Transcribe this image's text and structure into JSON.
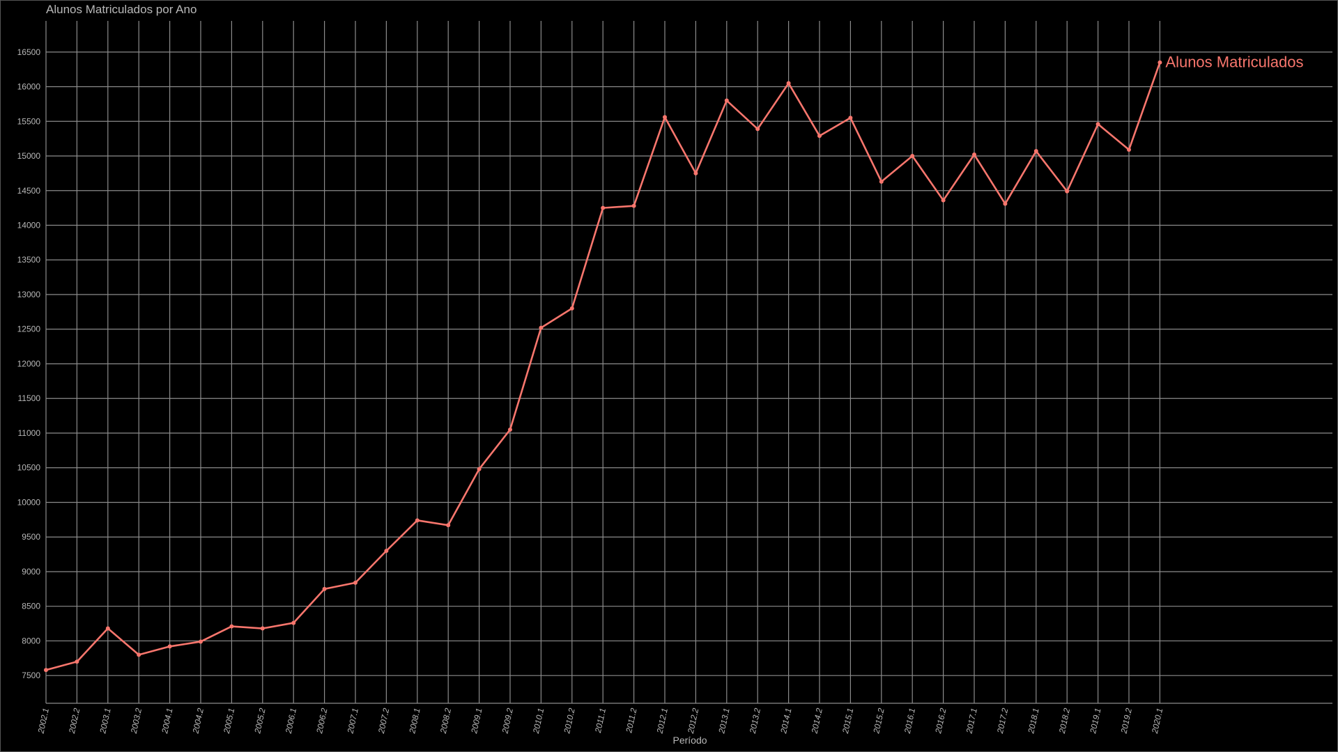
{
  "chart_data": {
    "type": "line",
    "title": "Alunos Matriculados por Ano",
    "xlabel": "Período",
    "ylabel": "",
    "ylim": [
      7100,
      16950
    ],
    "yticks": [
      7500,
      8000,
      8500,
      9000,
      9500,
      10000,
      10500,
      11000,
      11500,
      12000,
      12500,
      13000,
      13500,
      14000,
      14500,
      15000,
      15500,
      16000,
      16500
    ],
    "grid": true,
    "categories": [
      "2002.1",
      "2002.2",
      "2003.1",
      "2003.2",
      "2004.1",
      "2004.2",
      "2005.1",
      "2005.2",
      "2006.1",
      "2006.2",
      "2007.1",
      "2007.2",
      "2008.1",
      "2008.2",
      "2009.1",
      "2009.2",
      "2010.1",
      "2010.2",
      "2011.1",
      "2011.2",
      "2012.1",
      "2012.2",
      "2013.1",
      "2013.2",
      "2014.1",
      "2014.2",
      "2015.1",
      "2015.2",
      "2016.1",
      "2016.2",
      "2017.1",
      "2017.2",
      "2018.1",
      "2018.2",
      "2019.1",
      "2019.2",
      "2020.1"
    ],
    "series": [
      {
        "name": "Alunos Matriculados",
        "color": "#f8766d",
        "values": [
          7580,
          7700,
          8180,
          7800,
          7920,
          7990,
          8210,
          8180,
          8260,
          8750,
          8840,
          9300,
          9740,
          9670,
          10480,
          11050,
          12520,
          12800,
          14250,
          14280,
          15560,
          14750,
          15800,
          15390,
          16050,
          15290,
          15550,
          14630,
          15000,
          14360,
          15020,
          14310,
          15070,
          14490,
          15460,
          15090,
          16350
        ]
      }
    ]
  }
}
